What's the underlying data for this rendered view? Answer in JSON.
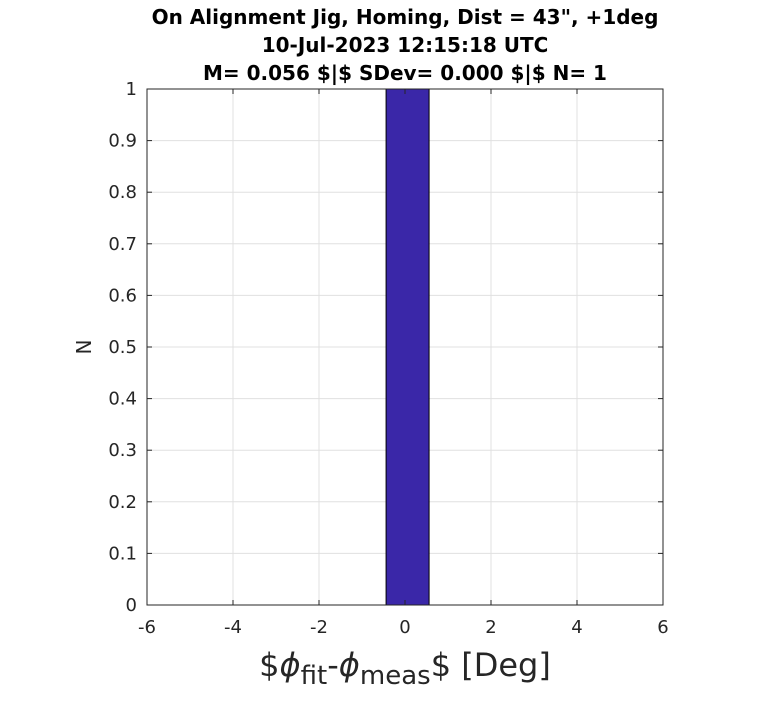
{
  "chart_data": {
    "type": "bar",
    "title_lines": [
      "On Alignment Jig, Homing, Dist = 43\", +1deg",
      "10-Jul-2023 12:15:18 UTC",
      "M= 0.056 $|$ SDev= 0.000 $|$ N= 1"
    ],
    "xlabel": {
      "dollar_open": "$",
      "phi1": "ϕ",
      "sub1": "fit",
      "dash": "-",
      "phi2": "ϕ",
      "sub2": "meas",
      "rest": "$ [Deg]"
    },
    "ylabel": "N",
    "xlim": [
      -6,
      6
    ],
    "ylim": [
      0,
      1
    ],
    "xticks": [
      -6,
      -4,
      -2,
      0,
      2,
      4,
      6
    ],
    "xtick_labels": [
      "-6",
      "-4",
      "-2",
      "0",
      "2",
      "4",
      "6"
    ],
    "yticks": [
      0,
      0.1,
      0.2,
      0.3,
      0.4,
      0.5,
      0.6,
      0.7,
      0.8,
      0.9,
      1
    ],
    "ytick_labels": [
      "0",
      "0.1",
      "0.2",
      "0.3",
      "0.4",
      "0.5",
      "0.6",
      "0.7",
      "0.8",
      "0.9",
      "1"
    ],
    "grid": true,
    "bars": [
      {
        "x_start": -0.44,
        "x_end": 0.56,
        "value": 1
      }
    ],
    "bar_color": "#3a27a8",
    "grid_color": "#e0e0e0",
    "axis_color": "#262626"
  }
}
